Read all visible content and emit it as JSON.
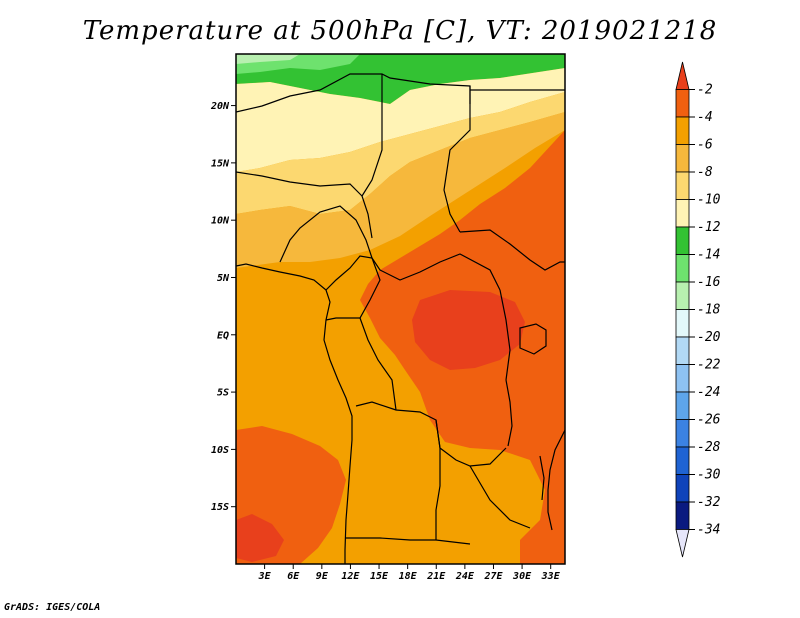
{
  "title": "Temperature at 500hPa [C], VT: 2019021218",
  "credit": "GrADS: IGES/COLA",
  "map": {
    "type": "filled-contour-map",
    "variable": "Temperature at 500hPa",
    "units": "C",
    "valid_time": "2019021218",
    "lon_range": [
      0,
      34.5
    ],
    "lat_range": [
      -20,
      24.5
    ],
    "lon_ticks": [
      "3E",
      "6E",
      "9E",
      "12E",
      "15E",
      "18E",
      "21E",
      "24E",
      "27E",
      "30E",
      "33E"
    ],
    "lon_tick_values": [
      3,
      6,
      9,
      12,
      15,
      18,
      21,
      24,
      27,
      30,
      33
    ],
    "lat_ticks": [
      "20N",
      "15N",
      "10N",
      "5N",
      "EQ",
      "5S",
      "10S",
      "15S"
    ],
    "lat_tick_values": [
      20,
      15,
      10,
      5,
      0,
      -5,
      -10,
      -15
    ]
  },
  "colorbar": {
    "labels": [
      "-2",
      "-4",
      "-6",
      "-8",
      "-10",
      "-12",
      "-14",
      "-16",
      "-18",
      "-20",
      "-22",
      "-24",
      "-26",
      "-28",
      "-30",
      "-32",
      "-34"
    ],
    "colors": [
      "#e8401c",
      "#f06010",
      "#f3a000",
      "#f6b83c",
      "#fcd870",
      "#fff3b5",
      "#33c233",
      "#6ee26e",
      "#b8f0b0",
      "#e3f8fa",
      "#b2d9f5",
      "#8ec2f2",
      "#5ea5ea",
      "#3b82e2",
      "#1f63d3",
      "#0f43ba",
      "#0a1a80",
      "#e6e6fa"
    ]
  }
}
